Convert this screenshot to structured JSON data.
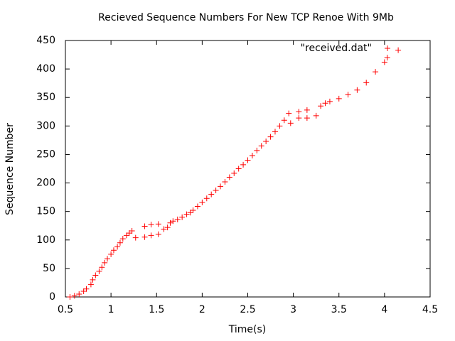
{
  "chart_data": {
    "type": "scatter",
    "title": "Recieved Sequence Numbers For New TCP Renoe With 9Mb",
    "x_label": "Time(s)",
    "y_label": "Sequence Number",
    "xlim": [
      0.5,
      4.5
    ],
    "ylim": [
      0,
      450
    ],
    "xticks": [
      0.5,
      1,
      1.5,
      2,
      2.5,
      3,
      3.5,
      4,
      4.5
    ],
    "yticks": [
      0,
      50,
      100,
      150,
      200,
      250,
      300,
      350,
      400,
      450
    ],
    "legend": "top-right",
    "series": [
      {
        "name": "\"received.dat\"",
        "color": "#ff0000",
        "x": [
          0.55,
          0.6,
          0.65,
          0.7,
          0.73,
          0.78,
          0.8,
          0.83,
          0.87,
          0.9,
          0.93,
          0.96,
          1.0,
          1.03,
          1.07,
          1.1,
          1.13,
          1.17,
          1.2,
          1.23,
          1.27,
          1.37,
          1.37,
          1.44,
          1.44,
          1.52,
          1.52,
          1.58,
          1.62,
          1.65,
          1.68,
          1.73,
          1.78,
          1.83,
          1.87,
          1.9,
          1.95,
          2.0,
          2.05,
          2.1,
          2.15,
          2.2,
          2.25,
          2.3,
          2.35,
          2.4,
          2.45,
          2.5,
          2.55,
          2.6,
          2.65,
          2.7,
          2.75,
          2.8,
          2.85,
          2.9,
          2.95,
          2.97,
          3.06,
          3.06,
          3.15,
          3.15,
          3.25,
          3.3,
          3.35,
          3.4,
          3.5,
          3.6,
          3.7,
          3.8,
          3.9,
          4.0,
          4.03,
          4.15
        ],
        "values": [
          0,
          2,
          5,
          10,
          14,
          22,
          30,
          38,
          45,
          52,
          60,
          67,
          75,
          82,
          88,
          95,
          102,
          108,
          112,
          116,
          104,
          105,
          124,
          108,
          127,
          110,
          128,
          119,
          122,
          130,
          133,
          136,
          140,
          145,
          148,
          152,
          159,
          166,
          173,
          180,
          187,
          194,
          202,
          210,
          217,
          225,
          232,
          240,
          248,
          257,
          265,
          273,
          281,
          290,
          300,
          310,
          322,
          305,
          314,
          325,
          314,
          328,
          318,
          335,
          340,
          343,
          348,
          355,
          363,
          376,
          395,
          412,
          420,
          433
        ]
      }
    ]
  }
}
